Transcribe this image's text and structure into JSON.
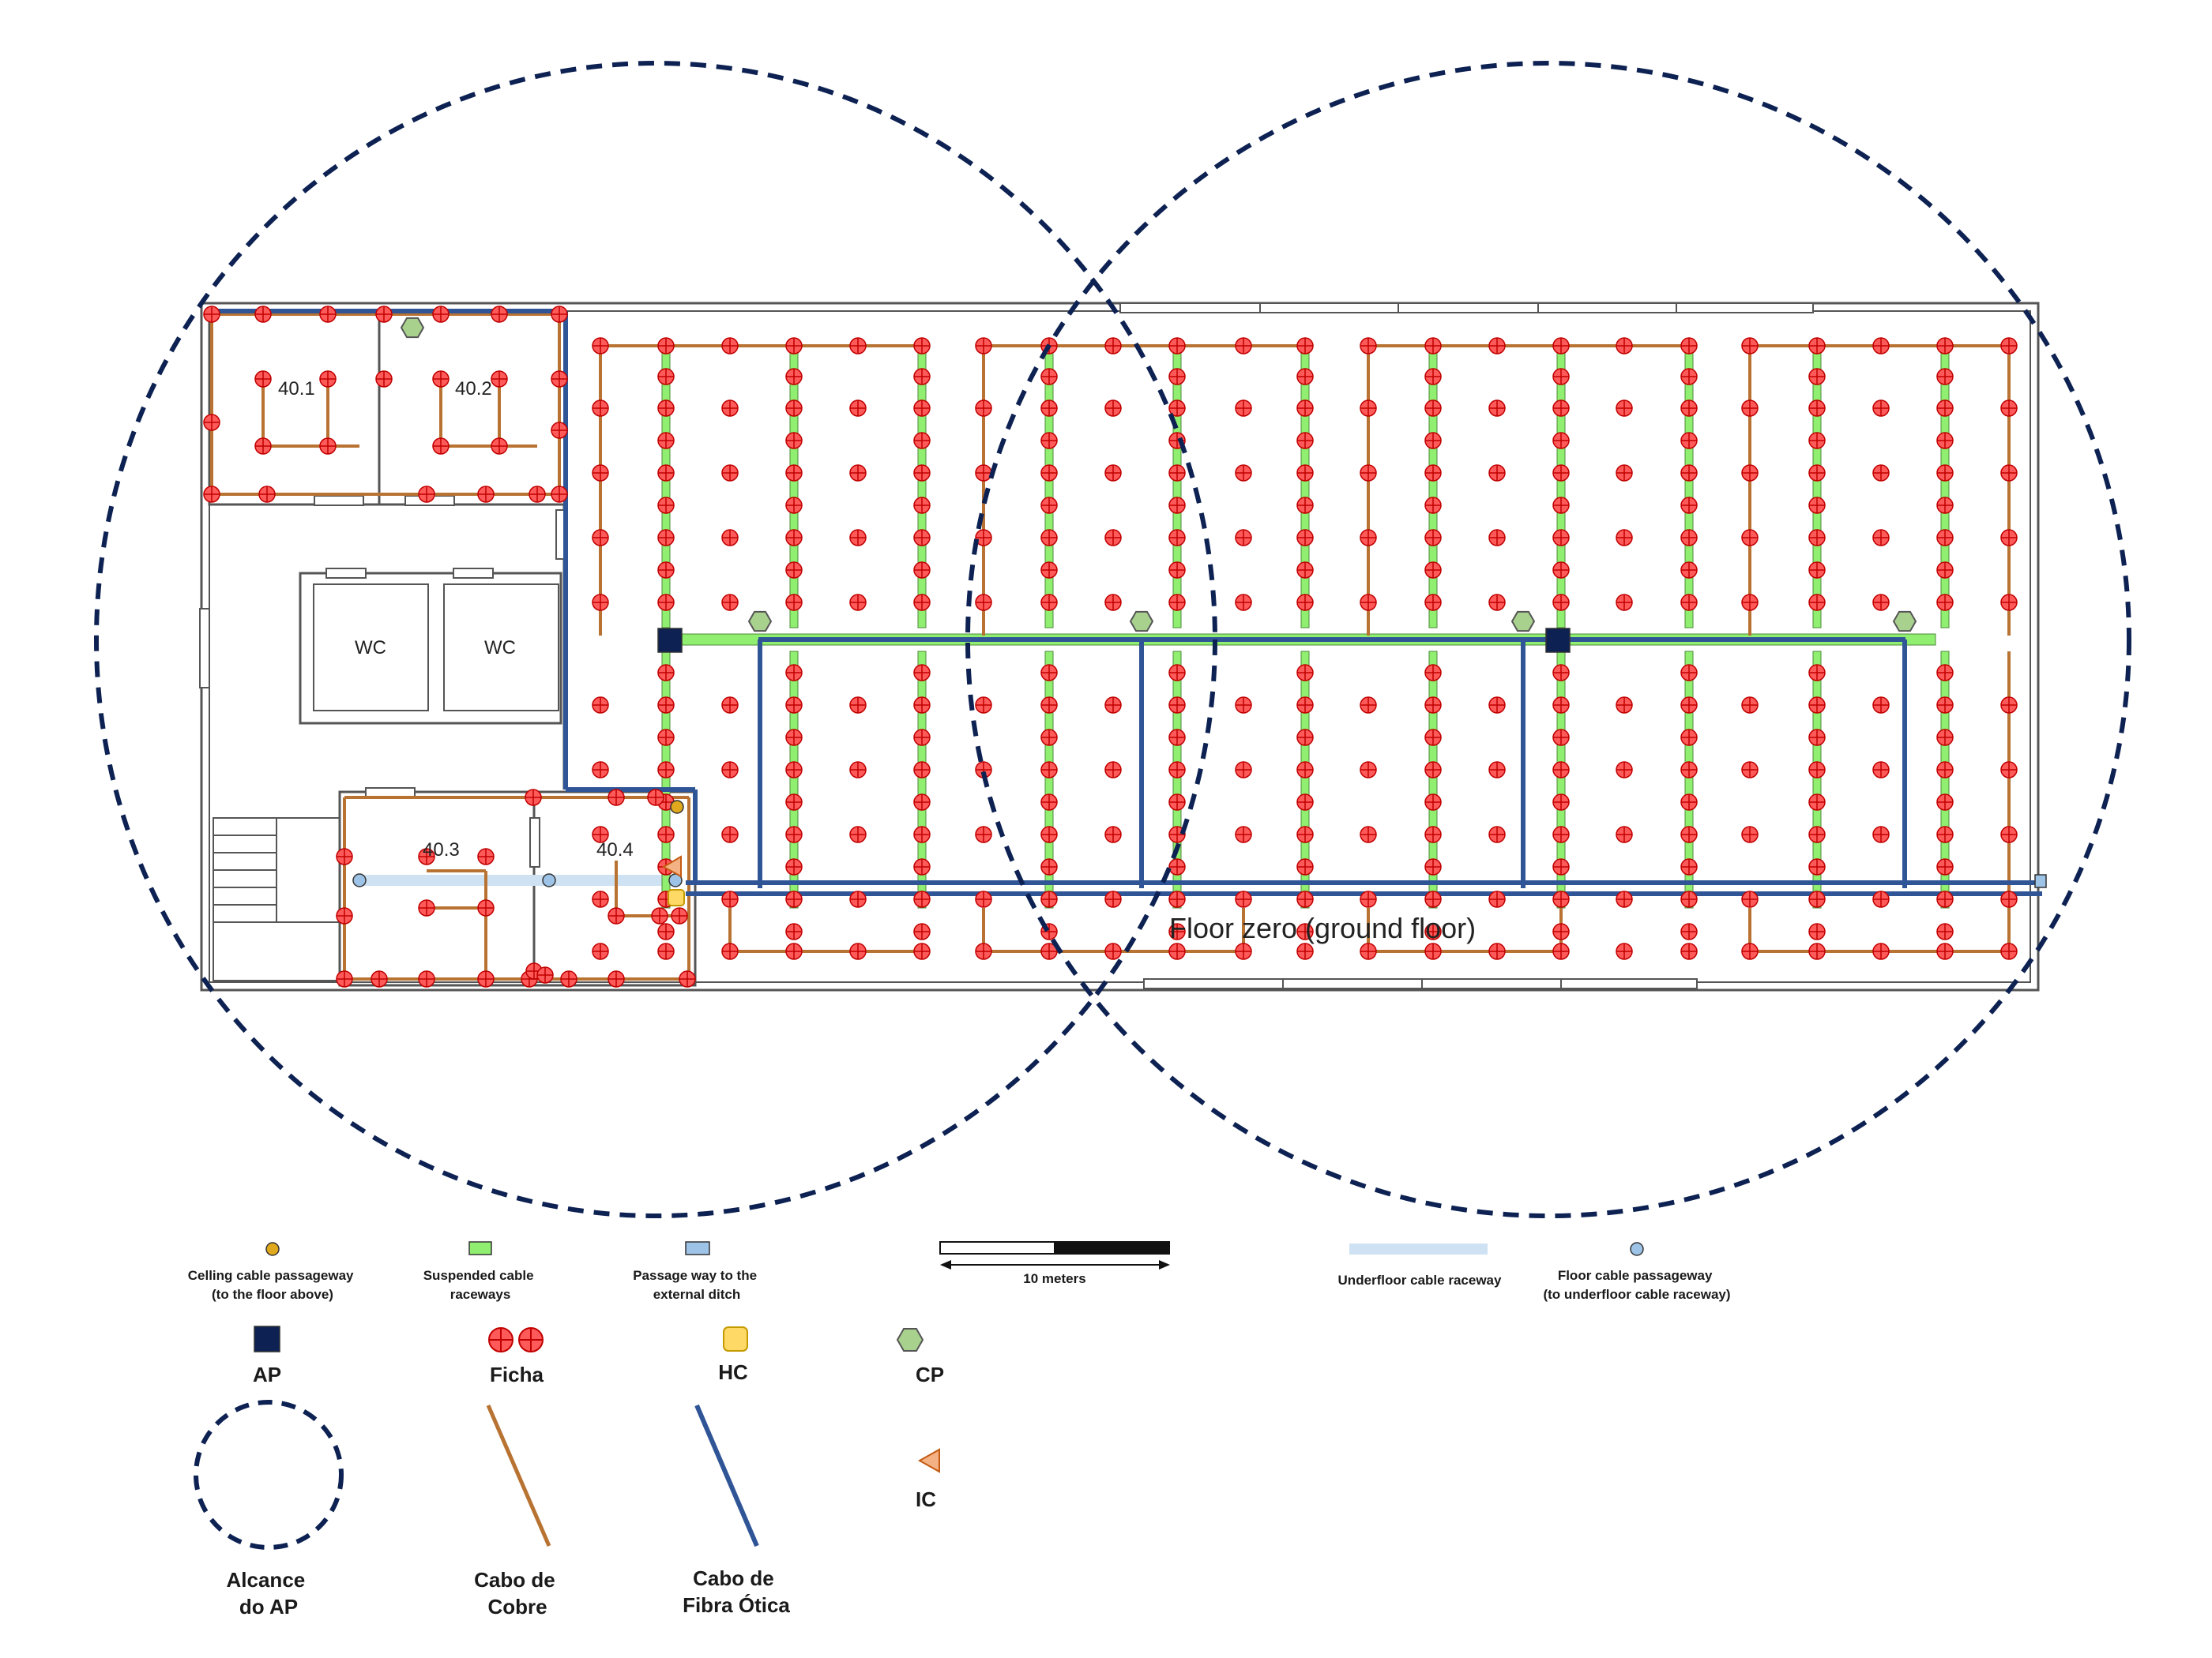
{
  "colors": {
    "ap": "#0d2252",
    "ficha": "#e01010",
    "copper": "#b87333",
    "fiber": "#2f5597",
    "suspended_raceway": "#90ee70",
    "underfloor_raceway": "#cfe2f3",
    "ceiling_passageway": "#e0a81c",
    "floor_passageway": "#9dc3e6",
    "hc": "#ffd966",
    "cp": "#a9d18e",
    "ic": "#f4b183",
    "wall": "#555555"
  },
  "rooms": {
    "r401": "40.1",
    "r402": "40.2",
    "r403": "40.3",
    "r404": "40.4",
    "wc1": "WC",
    "wc2": "WC"
  },
  "floor_title": "Floor zero (ground floor)",
  "legend": {
    "ceiling_passageway": [
      "Celling cable passageway",
      "(to the floor above)"
    ],
    "suspended_raceways": [
      "Suspended cable",
      "raceways"
    ],
    "passage_external": [
      "Passage way to the",
      "external ditch"
    ],
    "scale": "10 meters",
    "underfloor_raceway": "Underfloor cable raceway",
    "floor_passageway": [
      "Floor cable passageway",
      "(to underfloor cable raceway)"
    ],
    "ap": "AP",
    "ficha": "Ficha",
    "hc": "HC",
    "cp": "CP",
    "ic": "IC",
    "ap_range": [
      "Alcance",
      "do AP"
    ],
    "copper_cable": [
      "Cabo de",
      "Cobre"
    ],
    "fiber_cable": [
      "Cabo de",
      "Fibra Ótica"
    ]
  }
}
